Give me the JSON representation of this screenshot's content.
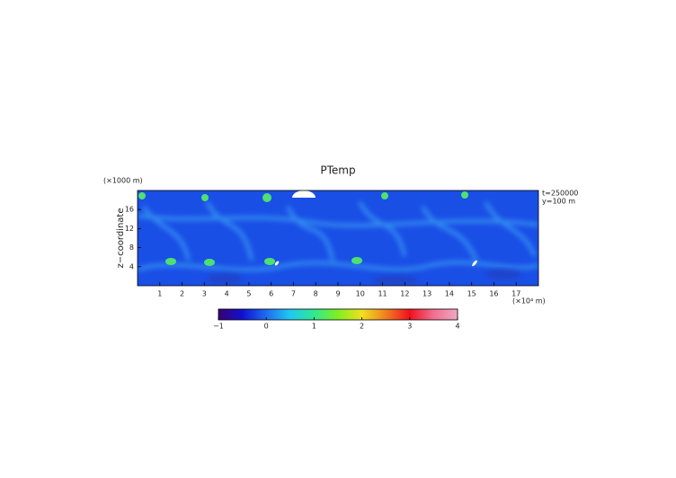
{
  "chart_data": {
    "type": "heatmap",
    "title": "PTemp",
    "y_label": "z−coordinate",
    "y_unit": "(×1000 m)",
    "x_unit": "(×10⁴ m)",
    "annotations": [
      "t=250000",
      "y=100 m"
    ],
    "xlim": [
      0,
      18
    ],
    "xticks": [
      1,
      2,
      3,
      4,
      5,
      6,
      7,
      8,
      9,
      10,
      11,
      12,
      13,
      14,
      15,
      16,
      17
    ],
    "ylim": [
      0,
      20
    ],
    "yticks": [
      4,
      8,
      12,
      16
    ],
    "clim": [
      -1,
      4
    ],
    "cticks": [
      {
        "value": -1,
        "label": "−1"
      },
      0,
      1,
      2,
      3,
      4
    ],
    "colormap": [
      "#3a0070",
      "#1010d0",
      "#1f6cf0",
      "#20c8f0",
      "#30e890",
      "#80f020",
      "#f0e020",
      "#f08020",
      "#f01020",
      "#f07090",
      "#f0a8c0"
    ]
  }
}
